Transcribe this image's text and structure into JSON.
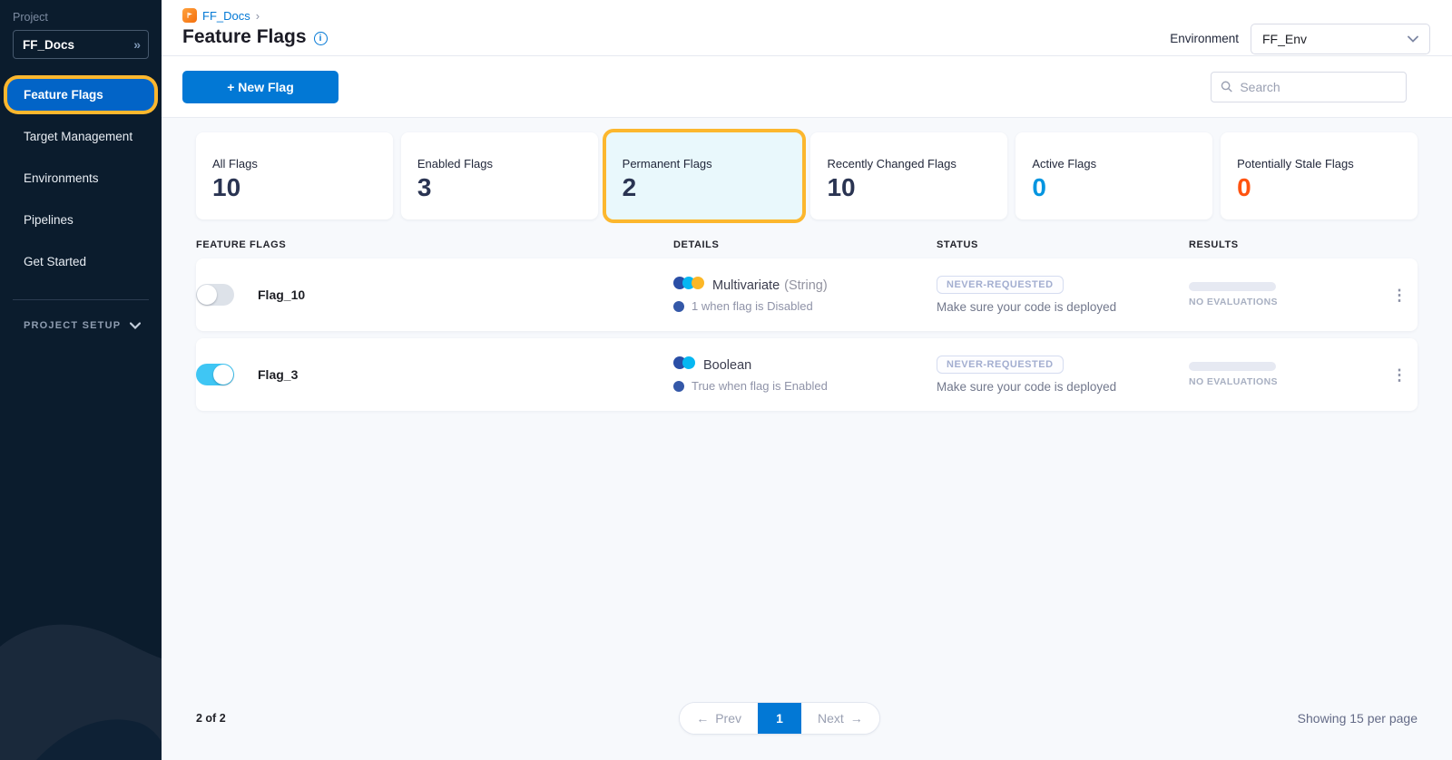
{
  "colors": {
    "accent_blue": "#0278d5",
    "active_nav_blue": "#0264c7",
    "highlight_ring_yellow": "#fcb72e",
    "sidebar_navy": "#0b1c2d",
    "toggle_on_cyan": "#3fc6f4"
  },
  "sidebar": {
    "project_label": "Project",
    "project_name": "FF_Docs",
    "nav": [
      {
        "label": "Feature Flags",
        "active": true
      },
      {
        "label": "Target Management",
        "active": false
      },
      {
        "label": "Environments",
        "active": false
      },
      {
        "label": "Pipelines",
        "active": false
      },
      {
        "label": "Get Started",
        "active": false
      }
    ],
    "section_label": "PROJECT SETUP"
  },
  "header": {
    "breadcrumb": "FF_Docs",
    "breadcrumb_chevron": "›",
    "title": "Feature Flags",
    "environment_label": "Environment",
    "environment_value": "FF_Env"
  },
  "toolbar": {
    "new_flag_label": "+ New Flag",
    "search_placeholder": "Search"
  },
  "cards": [
    {
      "label": "All Flags",
      "value": "10",
      "value_color": "#2a3452",
      "highlighted": false
    },
    {
      "label": "Enabled Flags",
      "value": "3",
      "value_color": "#2a3452",
      "highlighted": false
    },
    {
      "label": "Permanent Flags",
      "value": "2",
      "value_color": "#2a3452",
      "highlighted": true
    },
    {
      "label": "Recently Changed Flags",
      "value": "10",
      "value_color": "#2a3452",
      "highlighted": false
    },
    {
      "label": "Active Flags",
      "value": "0",
      "value_color": "#0295e0",
      "highlighted": false
    },
    {
      "label": "Potentially Stale Flags",
      "value": "0",
      "value_color": "#ff5310",
      "highlighted": false
    }
  ],
  "table": {
    "headers": [
      "FEATURE FLAGS",
      "DETAILS",
      "STATUS",
      "RESULTS"
    ],
    "rows": [
      {
        "name": "Flag_10",
        "enabled": false,
        "type": "Multivariate",
        "type_suffix": "(String)",
        "type_dots": [
          "#2a4ea6",
          "#06b7f2",
          "#fcb726"
        ],
        "variation_dot": "#3458a8",
        "variation": "1 when flag is Disabled",
        "status_badge": "NEVER-REQUESTED",
        "status_note": "Make sure your code is deployed",
        "results_label": "NO EVALUATIONS",
        "menu": "⋮"
      },
      {
        "name": "Flag_3",
        "enabled": true,
        "type": "Boolean",
        "type_suffix": "",
        "type_dots": [
          "#2a4ea6",
          "#06b7f2"
        ],
        "variation_dot": "#3458a8",
        "variation": "True when flag is Enabled",
        "status_badge": "NEVER-REQUESTED",
        "status_note": "Make sure your code is deployed",
        "results_label": "NO EVALUATIONS",
        "menu": "⋮"
      }
    ]
  },
  "pagination": {
    "count": "2 of 2",
    "prev_arrow": "←",
    "prev": "Prev",
    "page": "1",
    "next": "Next",
    "next_arrow": "→",
    "per_page": "Showing 15 per page"
  }
}
